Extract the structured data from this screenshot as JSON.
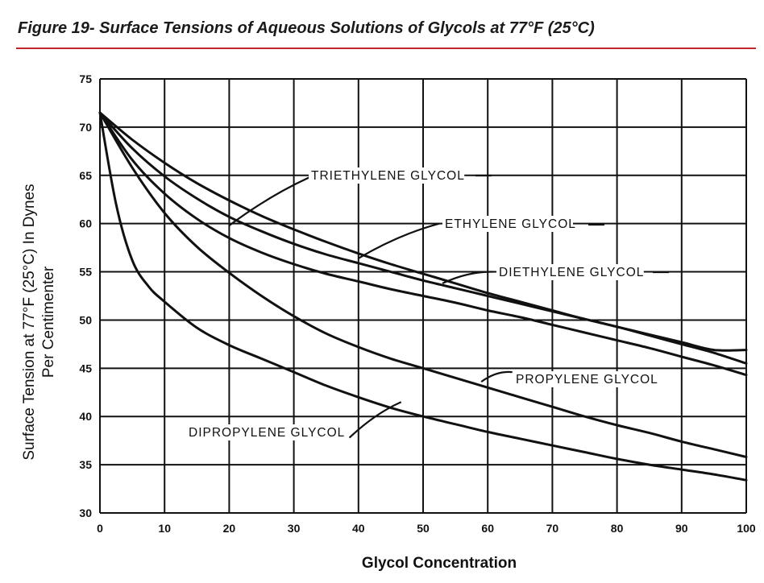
{
  "figure": {
    "title": "Figure 19- Surface Tensions of Aqueous Solutions of Glycols at 77°F (25°C)"
  },
  "chart_data": {
    "type": "line",
    "title": "Figure 19- Surface Tensions of Aqueous Solutions of Glycols at 77°F (25°C)",
    "xlabel": "Glycol Concentration",
    "ylabel": [
      "Surface Tension at 77°F (25°C) In Dynes",
      "Per Centimenter"
    ],
    "xlim": [
      0,
      100
    ],
    "ylim": [
      30,
      75
    ],
    "xticks": [
      0,
      10,
      20,
      30,
      40,
      50,
      60,
      70,
      80,
      90,
      100
    ],
    "yticks": [
      30,
      35,
      40,
      45,
      50,
      55,
      60,
      65,
      70,
      75
    ],
    "grid": true,
    "colors": {
      "line": "#111111",
      "grid": "#111111"
    },
    "series": [
      {
        "name": "TRIETHYLENE GLYCOL",
        "x": [
          0,
          5,
          10,
          15,
          20,
          25,
          30,
          35,
          40,
          45,
          50,
          55,
          60,
          65,
          70,
          75,
          80,
          85,
          90,
          95,
          100
        ],
        "y": [
          71.5,
          67.8,
          64.9,
          62.6,
          60.7,
          59.2,
          57.9,
          56.8,
          55.9,
          55.0,
          54.1,
          53.3,
          52.5,
          51.7,
          50.9,
          50.1,
          49.3,
          48.4,
          47.5,
          46.6,
          45.5
        ]
      },
      {
        "name": "ETHYLENE GLYCOL",
        "x": [
          0,
          5,
          10,
          15,
          20,
          25,
          30,
          35,
          40,
          45,
          50,
          55,
          60,
          65,
          70,
          75,
          80,
          85,
          90,
          95,
          100
        ],
        "y": [
          71.5,
          68.7,
          66.3,
          64.2,
          62.4,
          60.8,
          59.4,
          58.1,
          56.9,
          55.8,
          54.8,
          53.8,
          52.8,
          51.9,
          51.0,
          50.1,
          49.3,
          48.5,
          47.7,
          46.9,
          46.9
        ]
      },
      {
        "name": "DIETHYLENE GLYCOL",
        "x": [
          0,
          5,
          10,
          15,
          20,
          25,
          30,
          35,
          40,
          45,
          50,
          55,
          60,
          65,
          70,
          75,
          80,
          85,
          90,
          95,
          100
        ],
        "y": [
          71.5,
          66.6,
          63.1,
          60.5,
          58.5,
          57.0,
          55.8,
          54.8,
          54.0,
          53.2,
          52.5,
          51.8,
          51.0,
          50.3,
          49.5,
          48.7,
          47.9,
          47.1,
          46.2,
          45.3,
          44.3
        ]
      },
      {
        "name": "PROPYLENE GLYCOL",
        "x": [
          0,
          5,
          10,
          15,
          20,
          25,
          30,
          35,
          40,
          45,
          50,
          55,
          60,
          65,
          70,
          75,
          80,
          85,
          90,
          95,
          100
        ],
        "y": [
          71.5,
          65.8,
          61.1,
          57.6,
          54.9,
          52.5,
          50.4,
          48.6,
          47.2,
          46.0,
          45.0,
          44.0,
          43.0,
          42.0,
          41.0,
          40.0,
          39.1,
          38.3,
          37.4,
          36.6,
          35.8
        ]
      },
      {
        "name": "DIPROPYLENE GLYCOL",
        "x": [
          0,
          2.5,
          5,
          7.5,
          10,
          15,
          20,
          25,
          30,
          35,
          40,
          45,
          50,
          55,
          60,
          65,
          70,
          75,
          80,
          85,
          90,
          95,
          100
        ],
        "y": [
          71.5,
          62.0,
          56.2,
          53.5,
          51.9,
          49.2,
          47.4,
          46.0,
          44.6,
          43.2,
          42.0,
          40.9,
          40.0,
          39.2,
          38.4,
          37.7,
          37.0,
          36.3,
          35.6,
          35.0,
          34.5,
          34.0,
          33.4
        ]
      }
    ],
    "annotations": [
      {
        "text": "TRIETHYLENE GLYCOL",
        "target_series": "TRIETHYLENE GLYCOL"
      },
      {
        "text": "ETHYLENE GLYCOL",
        "target_series": "ETHYLENE GLYCOL"
      },
      {
        "text": "DIETHYLENE GLYCOL",
        "target_series": "DIETHYLENE GLYCOL"
      },
      {
        "text": "PROPYLENE GLYCOL",
        "target_series": "PROPYLENE GLYCOL"
      },
      {
        "text": "DIPROPYLENE GLYCOL",
        "target_series": "DIPROPYLENE GLYCOL"
      }
    ]
  }
}
